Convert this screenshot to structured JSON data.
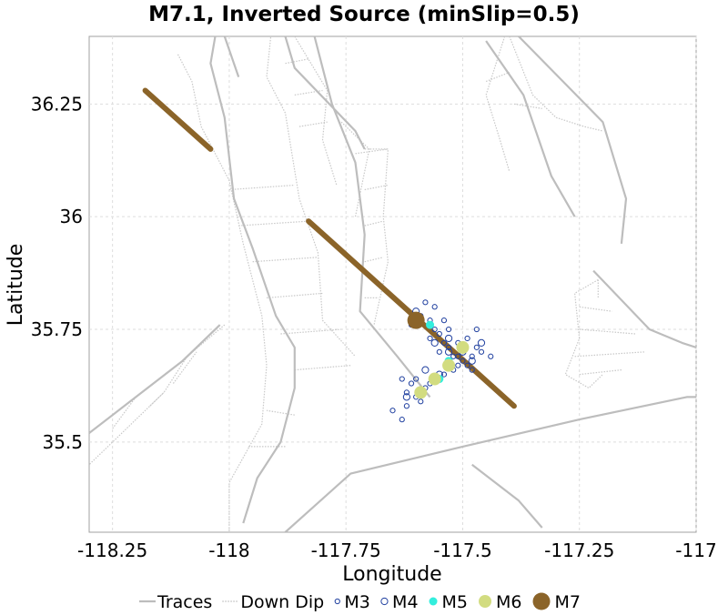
{
  "chart_data": {
    "type": "scatter",
    "title": "M7.1, Inverted Source (minSlip=0.5)",
    "xlabel": "Longitude",
    "ylabel": "Latitude",
    "xlim": [
      -118.3,
      -117.0
    ],
    "ylim": [
      35.3,
      36.4
    ],
    "xticks": [
      {
        "value": -118.25,
        "label": "-118.25"
      },
      {
        "value": -118.0,
        "label": "-118"
      },
      {
        "value": -117.75,
        "label": "-117.75"
      },
      {
        "value": -117.5,
        "label": "-117.5"
      },
      {
        "value": -117.25,
        "label": "-117.25"
      },
      {
        "value": -117.0,
        "label": "-117"
      }
    ],
    "yticks": [
      {
        "value": 35.5,
        "label": "35.5"
      },
      {
        "value": 35.75,
        "label": "35.75"
      },
      {
        "value": 36.0,
        "label": "36"
      },
      {
        "value": 36.25,
        "label": "36.25"
      }
    ],
    "grid": true,
    "legend_position": "bottom",
    "legend": [
      {
        "key": "traces",
        "label": "Traces",
        "color": "#bdbdbd",
        "style": "solid-line"
      },
      {
        "key": "downdip",
        "label": "Down Dip",
        "color": "#bdbdbd",
        "style": "dotted-line"
      },
      {
        "key": "m3",
        "label": "M3",
        "color": "#1f3f9f",
        "style": "small-open-circle"
      },
      {
        "key": "m4",
        "label": "M4",
        "color": "#1f3f9f",
        "style": "open-circle"
      },
      {
        "key": "m5",
        "label": "M5",
        "color": "#33eedd",
        "style": "filled-circle"
      },
      {
        "key": "m6",
        "label": "M6",
        "color": "#d2dc80",
        "style": "filled-circle"
      },
      {
        "key": "m7",
        "label": "M7",
        "color": "#8b6429",
        "style": "filled-circle"
      }
    ],
    "colors": {
      "trace": "#bdbdbd",
      "downdip": "#c8c8c8",
      "rupture": "#8b6429",
      "m3": "#1f3f9f",
      "m4": "#1f3f9f",
      "m5": "#33eedd",
      "m6": "#d2dc80",
      "m7": "#8b6429",
      "grid": "#dddddd"
    },
    "traces": [
      [
        [
          -118.3,
          35.52
        ],
        [
          -118.2,
          35.6
        ],
        [
          -118.1,
          35.68
        ],
        [
          -118.02,
          35.76
        ]
      ],
      [
        [
          -117.88,
          35.3
        ],
        [
          -117.74,
          35.43
        ],
        [
          -117.5,
          35.49
        ],
        [
          -117.25,
          35.55
        ],
        [
          -117.02,
          35.6
        ],
        [
          -117.0,
          35.6
        ]
      ],
      [
        [
          -117.88,
          36.4
        ],
        [
          -117.86,
          36.33
        ],
        [
          -117.73,
          36.19
        ],
        [
          -117.71,
          36.15
        ]
      ],
      [
        [
          -118.01,
          36.4
        ],
        [
          -117.98,
          36.31
        ]
      ],
      [
        [
          -118.03,
          36.4
        ],
        [
          -118.04,
          36.34
        ],
        [
          -118.01,
          36.22
        ],
        [
          -117.99,
          36.04
        ],
        [
          -117.95,
          35.93
        ],
        [
          -117.9,
          35.78
        ],
        [
          -117.86,
          35.71
        ],
        [
          -117.86,
          35.62
        ],
        [
          -117.89,
          35.5
        ],
        [
          -117.94,
          35.42
        ],
        [
          -117.97,
          35.32
        ]
      ],
      [
        [
          -117.82,
          36.41
        ],
        [
          -117.78,
          36.25
        ],
        [
          -117.73,
          36.12
        ],
        [
          -117.71,
          35.96
        ],
        [
          -117.72,
          35.79
        ],
        [
          -117.64,
          35.69
        ],
        [
          -117.57,
          35.6
        ]
      ],
      [
        [
          -117.45,
          36.39
        ],
        [
          -117.37,
          36.27
        ],
        [
          -117.31,
          36.09
        ],
        [
          -117.26,
          36.0
        ]
      ],
      [
        [
          -117.38,
          36.4
        ],
        [
          -117.2,
          36.21
        ],
        [
          -117.15,
          36.04
        ],
        [
          -117.16,
          35.94
        ]
      ],
      [
        [
          -117.22,
          35.88
        ],
        [
          -117.1,
          35.75
        ],
        [
          -117.03,
          35.72
        ],
        [
          -117.0,
          35.71
        ]
      ],
      [
        [
          -117.48,
          35.45
        ],
        [
          -117.38,
          35.37
        ],
        [
          -117.33,
          35.31
        ]
      ]
    ],
    "downdip": [
      [
        [
          -118.32,
          35.43
        ],
        [
          -118.24,
          35.51
        ],
        [
          -118.14,
          35.61
        ],
        [
          -118.09,
          35.69
        ],
        [
          -118.01,
          35.76
        ]
      ],
      [
        [
          -118.11,
          36.36
        ],
        [
          -118.08,
          36.3
        ],
        [
          -118.06,
          36.2
        ],
        [
          -118.0,
          36.08
        ],
        [
          -117.97,
          35.94
        ],
        [
          -117.93,
          35.78
        ],
        [
          -117.92,
          35.67
        ],
        [
          -117.93,
          35.54
        ],
        [
          -118.0,
          35.41
        ],
        [
          -118.0,
          35.3
        ]
      ],
      [
        [
          -117.91,
          36.41
        ],
        [
          -117.92,
          36.31
        ],
        [
          -117.88,
          36.23
        ],
        [
          -117.85,
          36.04
        ],
        [
          -117.81,
          35.92
        ],
        [
          -117.8,
          35.77
        ],
        [
          -117.73,
          35.69
        ]
      ],
      [
        [
          -117.86,
          36.4
        ],
        [
          -117.79,
          36.28
        ],
        [
          -117.8,
          36.17
        ],
        [
          -117.77,
          36.07
        ]
      ],
      [
        [
          -117.76,
          36.21
        ],
        [
          -117.7,
          36.15
        ],
        [
          -117.73,
          36.0
        ]
      ],
      [
        [
          -117.71,
          36.15
        ],
        [
          -117.66,
          36.15
        ],
        [
          -117.67,
          36.0
        ],
        [
          -117.66,
          35.9
        ],
        [
          -117.69,
          35.76
        ]
      ],
      [
        [
          -117.41,
          36.4
        ],
        [
          -117.45,
          36.27
        ],
        [
          -117.42,
          36.17
        ],
        [
          -117.4,
          36.1
        ]
      ],
      [
        [
          -117.4,
          36.4
        ],
        [
          -117.35,
          36.27
        ],
        [
          -117.3,
          36.22
        ],
        [
          -117.24,
          36.2
        ],
        [
          -117.2,
          36.19
        ]
      ],
      [
        [
          -117.21,
          35.86
        ],
        [
          -117.26,
          35.83
        ],
        [
          -117.25,
          35.73
        ],
        [
          -117.28,
          35.65
        ],
        [
          -117.23,
          35.62
        ],
        [
          -117.2,
          35.65
        ]
      ]
    ],
    "downdip_rungs": [
      [
        [
          -117.88,
          36.34
        ],
        [
          -117.83,
          36.35
        ]
      ],
      [
        [
          -117.86,
          36.27
        ],
        [
          -117.8,
          36.28
        ]
      ],
      [
        [
          -117.85,
          36.2
        ],
        [
          -117.79,
          36.21
        ]
      ],
      [
        [
          -118.0,
          36.06
        ],
        [
          -117.86,
          36.07
        ]
      ],
      [
        [
          -117.98,
          35.98
        ],
        [
          -117.83,
          35.99
        ]
      ],
      [
        [
          -117.95,
          35.9
        ],
        [
          -117.81,
          35.91
        ]
      ],
      [
        [
          -117.92,
          35.82
        ],
        [
          -117.8,
          35.83
        ]
      ],
      [
        [
          -117.89,
          35.74
        ],
        [
          -117.76,
          35.75
        ]
      ],
      [
        [
          -117.86,
          35.66
        ],
        [
          -117.74,
          35.67
        ]
      ],
      [
        [
          -117.86,
          35.56
        ],
        [
          -117.92,
          35.57
        ]
      ],
      [
        [
          -117.88,
          35.49
        ],
        [
          -117.96,
          35.49
        ]
      ],
      [
        [
          -117.73,
          36.14
        ],
        [
          -117.66,
          36.15
        ]
      ],
      [
        [
          -117.71,
          36.06
        ],
        [
          -117.66,
          36.07
        ]
      ],
      [
        [
          -117.71,
          35.98
        ],
        [
          -117.67,
          35.99
        ]
      ],
      [
        [
          -117.71,
          35.9
        ],
        [
          -117.67,
          35.91
        ]
      ],
      [
        [
          -117.71,
          35.82
        ],
        [
          -117.68,
          35.82
        ]
      ],
      [
        [
          -117.45,
          36.3
        ],
        [
          -117.4,
          36.32
        ]
      ],
      [
        [
          -117.39,
          36.25
        ],
        [
          -117.33,
          36.24
        ]
      ],
      [
        [
          -117.21,
          35.86
        ],
        [
          -117.21,
          35.82
        ]
      ],
      [
        [
          -117.25,
          35.8
        ],
        [
          -117.18,
          35.79
        ]
      ],
      [
        [
          -117.25,
          35.75
        ],
        [
          -117.13,
          35.74
        ]
      ],
      [
        [
          -117.26,
          35.69
        ],
        [
          -117.11,
          35.7
        ]
      ],
      [
        [
          -117.25,
          35.65
        ],
        [
          -117.16,
          35.66
        ]
      ],
      [
        [
          -118.25,
          35.53
        ],
        [
          -118.2,
          35.6
        ]
      ],
      [
        [
          -118.17,
          35.58
        ],
        [
          -118.14,
          35.61
        ]
      ],
      [
        [
          -118.12,
          35.63
        ],
        [
          -118.07,
          35.7
        ]
      ]
    ],
    "ruptures": [
      {
        "x": [
          -118.18,
          -118.04
        ],
        "y": [
          36.28,
          36.15
        ]
      },
      {
        "x": [
          -117.83,
          -117.39
        ],
        "y": [
          35.99,
          35.58
        ]
      }
    ],
    "series": [
      {
        "name": "M3",
        "key": "m3",
        "points": [
          [
            -117.61,
            35.76
          ],
          [
            -117.59,
            35.78
          ],
          [
            -117.57,
            35.77
          ],
          [
            -117.56,
            35.75
          ],
          [
            -117.55,
            35.74
          ],
          [
            -117.57,
            35.73
          ],
          [
            -117.54,
            35.72
          ],
          [
            -117.53,
            35.71
          ],
          [
            -117.55,
            35.7
          ],
          [
            -117.52,
            35.69
          ],
          [
            -117.51,
            35.69
          ],
          [
            -117.5,
            35.68
          ],
          [
            -117.49,
            35.67
          ],
          [
            -117.48,
            35.69
          ],
          [
            -117.47,
            35.71
          ],
          [
            -117.46,
            35.7
          ],
          [
            -117.51,
            35.72
          ],
          [
            -117.49,
            35.73
          ],
          [
            -117.47,
            35.75
          ],
          [
            -117.53,
            35.75
          ],
          [
            -117.54,
            35.77
          ],
          [
            -117.56,
            35.8
          ],
          [
            -117.58,
            35.81
          ],
          [
            -117.52,
            35.66
          ],
          [
            -117.54,
            35.65
          ],
          [
            -117.55,
            35.64
          ],
          [
            -117.57,
            35.63
          ],
          [
            -117.58,
            35.62
          ],
          [
            -117.6,
            35.64
          ],
          [
            -117.61,
            35.63
          ],
          [
            -117.63,
            35.64
          ],
          [
            -117.62,
            35.61
          ],
          [
            -117.6,
            35.6
          ],
          [
            -117.59,
            35.59
          ],
          [
            -117.62,
            35.58
          ],
          [
            -117.63,
            35.55
          ],
          [
            -117.65,
            35.57
          ],
          [
            -117.44,
            35.69
          ],
          [
            -117.5,
            35.71
          ],
          [
            -117.48,
            35.66
          ],
          [
            -117.51,
            35.67
          ]
        ]
      },
      {
        "name": "M4",
        "key": "m4",
        "points": [
          [
            -117.6,
            35.79
          ],
          [
            -117.56,
            35.72
          ],
          [
            -117.53,
            35.7
          ],
          [
            -117.55,
            35.65
          ],
          [
            -117.58,
            35.66
          ],
          [
            -117.5,
            35.7
          ],
          [
            -117.48,
            35.68
          ],
          [
            -117.62,
            35.6
          ],
          [
            -117.53,
            35.73
          ],
          [
            -117.46,
            35.72
          ]
        ]
      },
      {
        "name": "M5",
        "key": "m5",
        "points": [
          [
            -117.57,
            35.76
          ],
          [
            -117.53,
            35.68
          ],
          [
            -117.55,
            35.64
          ]
        ]
      },
      {
        "name": "M6",
        "key": "m6",
        "points": [
          [
            -117.5,
            35.71
          ],
          [
            -117.56,
            35.64
          ],
          [
            -117.59,
            35.61
          ],
          [
            -117.53,
            35.67
          ]
        ]
      },
      {
        "name": "M7",
        "key": "m7",
        "points": [
          [
            -117.6,
            35.77
          ]
        ]
      }
    ]
  }
}
